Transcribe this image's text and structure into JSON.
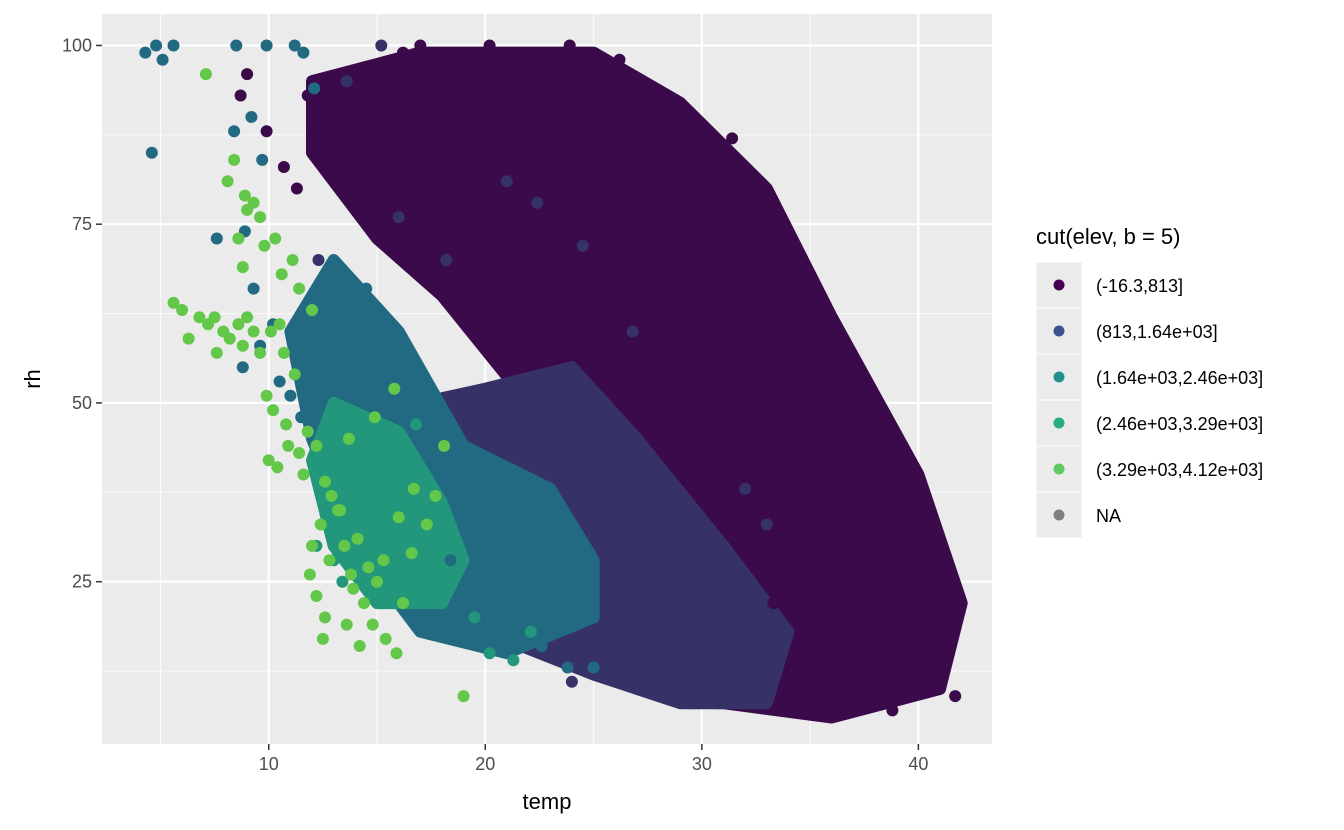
{
  "chart_data": {
    "type": "scatter",
    "title": "",
    "xlabel": "temp",
    "ylabel": "rh",
    "xlim": [
      2.3,
      43.4
    ],
    "ylim": [
      2.3,
      104.4
    ],
    "x_ticks": [
      10,
      20,
      30,
      40
    ],
    "y_ticks": [
      25,
      50,
      75,
      100
    ],
    "grid": true,
    "legend": {
      "title": "cut(elev, b = 5)",
      "placement": "right",
      "entries": [
        {
          "label": "(-16.3,813]",
          "color": "#440154"
        },
        {
          "label": "(813,1.64e+03]",
          "color": "#3b528b"
        },
        {
          "label": "(1.64e+03,2.46e+03]",
          "color": "#21908c"
        },
        {
          "label": "(2.46e+03,3.29e+03]",
          "color": "#27ad81"
        },
        {
          "label": "(3.29e+03,4.12e+03]",
          "color": "#5dc963"
        },
        {
          "label": "NA",
          "color": "#7f7f7f"
        }
      ]
    },
    "series": [
      {
        "group": "(-16.3,813]",
        "color": "#3b0a4a",
        "region": [
          [
            12,
            95
          ],
          [
            17,
            99
          ],
          [
            25,
            99
          ],
          [
            29,
            92
          ],
          [
            33,
            80
          ],
          [
            36,
            62
          ],
          [
            40,
            40
          ],
          [
            42,
            22
          ],
          [
            41,
            10
          ],
          [
            36,
            6
          ],
          [
            31,
            8
          ],
          [
            28,
            22
          ],
          [
            25,
            38
          ],
          [
            22,
            50
          ],
          [
            18,
            65
          ],
          [
            15,
            73
          ],
          [
            12,
            85
          ]
        ],
        "points": [
          [
            41.7,
            9
          ],
          [
            41.2,
            20
          ],
          [
            40.6,
            22
          ],
          [
            39.9,
            14
          ],
          [
            38.8,
            7
          ],
          [
            37.5,
            42
          ],
          [
            36.8,
            35
          ],
          [
            35.5,
            30
          ],
          [
            34.2,
            12
          ],
          [
            33.3,
            22
          ],
          [
            32.8,
            67
          ],
          [
            31.4,
            87
          ],
          [
            29.2,
            90
          ],
          [
            27.5,
            94
          ],
          [
            26.2,
            98
          ],
          [
            23.9,
            100
          ],
          [
            20.2,
            100
          ],
          [
            17.0,
            100
          ],
          [
            16.2,
            99
          ],
          [
            14.5,
            97
          ],
          [
            13.0,
            91
          ],
          [
            11.8,
            93
          ],
          [
            11.3,
            80
          ],
          [
            10.7,
            83
          ],
          [
            9.9,
            88
          ],
          [
            9.0,
            96
          ],
          [
            8.7,
            93
          ]
        ]
      },
      {
        "group": "(813,1.64e+03]",
        "color": "#363268",
        "region": [
          [
            17,
            50
          ],
          [
            20,
            52
          ],
          [
            24,
            55
          ],
          [
            27,
            45
          ],
          [
            31,
            30
          ],
          [
            34,
            18
          ],
          [
            33,
            8
          ],
          [
            29,
            8
          ],
          [
            25,
            12
          ],
          [
            20,
            18
          ],
          [
            17,
            30
          ]
        ],
        "points": [
          [
            30.8,
            8
          ],
          [
            29.5,
            8
          ],
          [
            27.6,
            10
          ],
          [
            26.3,
            16
          ],
          [
            24.0,
            11
          ],
          [
            33.0,
            33
          ],
          [
            32.0,
            38
          ],
          [
            26.8,
            60
          ],
          [
            24.5,
            72
          ],
          [
            22.4,
            78
          ],
          [
            21.0,
            81
          ],
          [
            18.2,
            70
          ],
          [
            16.0,
            76
          ],
          [
            15.2,
            100
          ],
          [
            13.6,
            95
          ],
          [
            12.3,
            70
          ]
        ]
      },
      {
        "group": "(1.64e+03,2.46e+03]",
        "color": "#226a82",
        "region": [
          [
            13,
            70
          ],
          [
            16,
            60
          ],
          [
            19,
            44
          ],
          [
            23,
            38
          ],
          [
            25,
            28
          ],
          [
            25,
            20
          ],
          [
            21,
            15
          ],
          [
            17,
            18
          ],
          [
            14,
            30
          ],
          [
            12,
            45
          ],
          [
            11,
            60
          ]
        ],
        "points": [
          [
            4.8,
            100
          ],
          [
            4.3,
            99
          ],
          [
            5.1,
            98
          ],
          [
            5.6,
            100
          ],
          [
            4.6,
            85
          ],
          [
            8.5,
            100
          ],
          [
            9.9,
            100
          ],
          [
            11.2,
            100
          ],
          [
            11.6,
            99
          ],
          [
            12.1,
            94
          ],
          [
            9.2,
            90
          ],
          [
            9.7,
            84
          ],
          [
            8.4,
            88
          ],
          [
            7.6,
            73
          ],
          [
            8.9,
            74
          ],
          [
            9.3,
            66
          ],
          [
            10.2,
            61
          ],
          [
            9.6,
            58
          ],
          [
            8.8,
            55
          ],
          [
            10.5,
            53
          ],
          [
            11.0,
            51
          ],
          [
            11.5,
            48
          ],
          [
            12.7,
            61
          ],
          [
            13.8,
            52
          ],
          [
            14.5,
            66
          ],
          [
            15.6,
            56
          ],
          [
            17.8,
            42
          ],
          [
            18.4,
            28
          ],
          [
            19.2,
            18
          ],
          [
            20.7,
            22
          ],
          [
            22.6,
            16
          ],
          [
            23.8,
            13
          ],
          [
            25.0,
            13
          ]
        ]
      },
      {
        "group": "(2.46e+03,3.29e+03]",
        "color": "#22977c",
        "region": [
          [
            13,
            50
          ],
          [
            16,
            46
          ],
          [
            18,
            36
          ],
          [
            19,
            28
          ],
          [
            18,
            22
          ],
          [
            15,
            22
          ],
          [
            13,
            30
          ],
          [
            12,
            42
          ]
        ],
        "points": [
          [
            13.4,
            25
          ],
          [
            13.0,
            28
          ],
          [
            12.2,
            30
          ],
          [
            14.4,
            40
          ],
          [
            15.5,
            45
          ],
          [
            16.8,
            47
          ],
          [
            17.4,
            33
          ],
          [
            17.9,
            27
          ],
          [
            19.5,
            20
          ],
          [
            20.2,
            15
          ],
          [
            21.3,
            14
          ],
          [
            22.1,
            18
          ]
        ]
      },
      {
        "group": "(3.29e+03,4.12e+03]",
        "color": "#63c84a",
        "region": [],
        "points": [
          [
            7.1,
            96
          ],
          [
            8.1,
            81
          ],
          [
            8.4,
            84
          ],
          [
            8.9,
            79
          ],
          [
            9.3,
            78
          ],
          [
            9.6,
            76
          ],
          [
            9.0,
            77
          ],
          [
            8.6,
            73
          ],
          [
            9.8,
            72
          ],
          [
            8.8,
            69
          ],
          [
            10.3,
            73
          ],
          [
            10.6,
            68
          ],
          [
            11.1,
            70
          ],
          [
            5.6,
            64
          ],
          [
            6.0,
            63
          ],
          [
            6.3,
            59
          ],
          [
            6.8,
            62
          ],
          [
            7.2,
            61
          ],
          [
            7.5,
            62
          ],
          [
            7.9,
            60
          ],
          [
            8.2,
            59
          ],
          [
            8.6,
            61
          ],
          [
            9.0,
            62
          ],
          [
            9.3,
            60
          ],
          [
            9.6,
            57
          ],
          [
            8.8,
            58
          ],
          [
            7.6,
            57
          ],
          [
            10.1,
            60
          ],
          [
            10.5,
            61
          ],
          [
            9.9,
            51
          ],
          [
            10.2,
            49
          ],
          [
            10.8,
            47
          ],
          [
            10.0,
            42
          ],
          [
            10.4,
            41
          ],
          [
            10.9,
            44
          ],
          [
            11.4,
            43
          ],
          [
            11.8,
            46
          ],
          [
            12.2,
            44
          ],
          [
            12.6,
            39
          ],
          [
            12.9,
            37
          ],
          [
            13.2,
            35
          ],
          [
            11.6,
            40
          ],
          [
            12.4,
            33
          ],
          [
            12.8,
            28
          ],
          [
            13.5,
            30
          ],
          [
            14.1,
            31
          ],
          [
            14.6,
            27
          ],
          [
            15.0,
            25
          ],
          [
            13.8,
            26
          ],
          [
            14.4,
            22
          ],
          [
            13.6,
            19
          ],
          [
            12.6,
            20
          ],
          [
            12.2,
            23
          ],
          [
            14.8,
            19
          ],
          [
            15.4,
            17
          ],
          [
            15.9,
            15
          ],
          [
            14.2,
            16
          ],
          [
            11.9,
            26
          ],
          [
            12.5,
            17
          ],
          [
            16.2,
            22
          ],
          [
            16.6,
            29
          ],
          [
            17.3,
            33
          ],
          [
            17.7,
            37
          ],
          [
            18.1,
            44
          ],
          [
            15.8,
            52
          ],
          [
            14.9,
            48
          ],
          [
            13.7,
            45
          ],
          [
            11.2,
            54
          ],
          [
            10.7,
            57
          ],
          [
            12.0,
            63
          ],
          [
            11.4,
            66
          ],
          [
            13.3,
            35
          ],
          [
            12.0,
            30
          ],
          [
            13.9,
            24
          ],
          [
            15.3,
            28
          ],
          [
            16.0,
            34
          ],
          [
            16.7,
            38
          ],
          [
            19.0,
            9
          ]
        ]
      }
    ]
  }
}
